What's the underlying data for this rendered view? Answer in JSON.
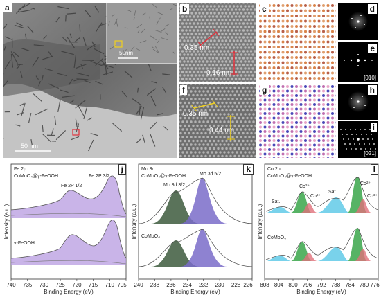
{
  "tem": {
    "a": {
      "label": "a",
      "scale_main": "50 nm",
      "scale_inset": "50nm"
    },
    "b": {
      "label": "b",
      "spacing1": "0.35 nm",
      "spacing2": "0.16 nm"
    },
    "c": {
      "label": "c"
    },
    "d": {
      "label": "d"
    },
    "e": {
      "label": "e",
      "zone": "[010]"
    },
    "f": {
      "label": "f",
      "spacing1": "0.35 nm",
      "spacing2": "0.44 nm"
    },
    "g": {
      "label": "g"
    },
    "h": {
      "label": "h"
    },
    "i": {
      "label": "i",
      "zone": "[021]"
    }
  },
  "xps": {
    "j": {
      "label": "j",
      "region": "Fe 2p",
      "sample_top": "CoMoO₄@γ-FeOOH",
      "sample_bottom": "γ-FeOOH",
      "peak1": "Fe 2P 1/2",
      "peak2": "Fe 2P 3/2",
      "ylabel": "Intensity (a.u.)",
      "xlabel": "Binding Energy (eV)",
      "ticks": [
        "740",
        "735",
        "730",
        "725",
        "720",
        "715",
        "710",
        "705"
      ]
    },
    "k": {
      "label": "k",
      "region": "Mo 3d",
      "sample_top": "CoMoO₄@γ-FeOOH",
      "sample_bottom": "CoMoO₄",
      "peak1": "Mo 3d 3/2",
      "peak2": "Mo 3d 5/2",
      "ylabel": "Intensity (a.u.)",
      "xlabel": "Binding Energy (eV)",
      "ticks": [
        "240",
        "238",
        "236",
        "234",
        "232",
        "230",
        "228",
        "226"
      ]
    },
    "l": {
      "label": "l",
      "region": "Co 2p",
      "sample_top": "CoMoO₄@γ-FeOOH",
      "sample_bottom": "CoMoO₄",
      "sat1": "Sat.",
      "sat2": "Sat.",
      "co2a": "Co²⁺",
      "co3a": "Co³⁺",
      "co2b": "Co²⁺",
      "co3b": "Co³⁺",
      "ylabel": "Intensity (a.u.)",
      "xlabel": "Binding Energy (eV)",
      "ticks": [
        "808",
        "804",
        "800",
        "796",
        "792",
        "788",
        "784",
        "780",
        "776"
      ]
    }
  },
  "colors": {
    "fe": "#b79be0",
    "mo_a": "#3d5a3d",
    "mo_b": "#7a6cc9",
    "co_green": "#3aa64a",
    "co_blue": "#58c7e6",
    "co_red": "#e0707a",
    "annot_red": "#e0303a",
    "annot_yellow": "#f0d020"
  }
}
